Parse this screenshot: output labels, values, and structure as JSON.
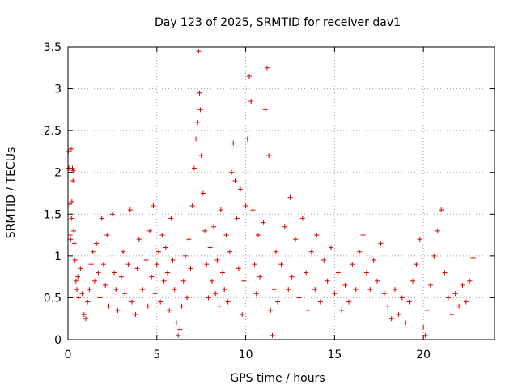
{
  "chart_data": {
    "type": "scatter",
    "title": "Day 123 of 2025, SRMTID for receiver dav1",
    "xlabel": "GPS time / hours",
    "ylabel": "SRMTID / TECUs",
    "xlim": [
      0,
      24
    ],
    "ylim": [
      0,
      3.5
    ],
    "x_ticks": [
      "0",
      "5",
      "10",
      "15",
      "20"
    ],
    "y_ticks": [
      "0",
      "0.5",
      "1",
      "1.5",
      "2",
      "2.5",
      "3",
      "3.5"
    ],
    "grid": true,
    "marker": "plus",
    "color": "#e00000",
    "series": [
      {
        "name": "SRMTID",
        "points": [
          [
            0.02,
            2.25
          ],
          [
            0.05,
            2.05
          ],
          [
            0.1,
            1.62
          ],
          [
            0.12,
            1.25
          ],
          [
            0.15,
            1.2
          ],
          [
            0.18,
            2.28
          ],
          [
            0.2,
            1.45
          ],
          [
            0.22,
            1.65
          ],
          [
            0.25,
            2.05
          ],
          [
            0.28,
            1.9
          ],
          [
            0.3,
            2.02
          ],
          [
            0.32,
            1.3
          ],
          [
            0.35,
            1.15
          ],
          [
            0.4,
            0.95
          ],
          [
            0.45,
            0.7
          ],
          [
            0.5,
            0.6
          ],
          [
            0.55,
            0.75
          ],
          [
            0.6,
            0.5
          ],
          [
            0.7,
            0.85
          ],
          [
            0.8,
            0.55
          ],
          [
            0.9,
            0.3
          ],
          [
            1.0,
            0.25
          ],
          [
            1.1,
            0.45
          ],
          [
            1.2,
            0.6
          ],
          [
            1.3,
            0.9
          ],
          [
            1.4,
            1.05
          ],
          [
            1.5,
            0.7
          ],
          [
            1.6,
            1.15
          ],
          [
            1.7,
            0.8
          ],
          [
            1.8,
            0.5
          ],
          [
            1.9,
            1.45
          ],
          [
            2.0,
            0.9
          ],
          [
            2.1,
            0.65
          ],
          [
            2.2,
            1.25
          ],
          [
            2.3,
            0.4
          ],
          [
            2.5,
            1.5
          ],
          [
            2.6,
            0.8
          ],
          [
            2.7,
            0.6
          ],
          [
            2.8,
            0.35
          ],
          [
            3.0,
            0.75
          ],
          [
            3.1,
            1.05
          ],
          [
            3.2,
            0.55
          ],
          [
            3.4,
            0.9
          ],
          [
            3.5,
            1.55
          ],
          [
            3.6,
            0.45
          ],
          [
            3.8,
            0.3
          ],
          [
            3.9,
            0.85
          ],
          [
            4.0,
            1.2
          ],
          [
            4.2,
            0.6
          ],
          [
            4.4,
            0.95
          ],
          [
            4.5,
            0.4
          ],
          [
            4.6,
            1.3
          ],
          [
            4.7,
            0.75
          ],
          [
            4.8,
            1.6
          ],
          [
            4.9,
            0.55
          ],
          [
            5.0,
            0.9
          ],
          [
            5.1,
            1.05
          ],
          [
            5.2,
            0.45
          ],
          [
            5.3,
            1.25
          ],
          [
            5.4,
            0.7
          ],
          [
            5.5,
            1.1
          ],
          [
            5.6,
            0.8
          ],
          [
            5.7,
            0.35
          ],
          [
            5.8,
            1.45
          ],
          [
            5.9,
            0.95
          ],
          [
            6.0,
            0.6
          ],
          [
            6.1,
            0.2
          ],
          [
            6.2,
            0.05
          ],
          [
            6.3,
            0.12
          ],
          [
            6.4,
            0.4
          ],
          [
            6.5,
            0.7
          ],
          [
            6.6,
            1.0
          ],
          [
            6.7,
            0.5
          ],
          [
            6.8,
            1.2
          ],
          [
            6.9,
            0.85
          ],
          [
            7.0,
            1.6
          ],
          [
            7.1,
            2.05
          ],
          [
            7.2,
            2.4
          ],
          [
            7.3,
            2.6
          ],
          [
            7.35,
            3.45
          ],
          [
            7.4,
            2.95
          ],
          [
            7.45,
            2.75
          ],
          [
            7.5,
            2.2
          ],
          [
            7.6,
            1.75
          ],
          [
            7.7,
            1.3
          ],
          [
            7.8,
            0.9
          ],
          [
            7.9,
            0.5
          ],
          [
            8.0,
            1.1
          ],
          [
            8.1,
            0.7
          ],
          [
            8.2,
            1.35
          ],
          [
            8.3,
            0.55
          ],
          [
            8.4,
            0.95
          ],
          [
            8.5,
            0.4
          ],
          [
            8.6,
            1.55
          ],
          [
            8.7,
            0.8
          ],
          [
            8.8,
            0.6
          ],
          [
            8.9,
            1.25
          ],
          [
            9.0,
            0.45
          ],
          [
            9.1,
            1.05
          ],
          [
            9.2,
            2.0
          ],
          [
            9.3,
            2.35
          ],
          [
            9.4,
            1.9
          ],
          [
            9.5,
            1.45
          ],
          [
            9.6,
            0.85
          ],
          [
            9.7,
            1.8
          ],
          [
            9.8,
            0.3
          ],
          [
            9.9,
            0.7
          ],
          [
            10.0,
            1.6
          ],
          [
            10.1,
            2.4
          ],
          [
            10.2,
            3.15
          ],
          [
            10.3,
            2.85
          ],
          [
            10.4,
            1.55
          ],
          [
            10.5,
            0.9
          ],
          [
            10.6,
            0.55
          ],
          [
            10.7,
            1.25
          ],
          [
            10.8,
            0.75
          ],
          [
            11.0,
            1.4
          ],
          [
            11.1,
            2.75
          ],
          [
            11.2,
            3.25
          ],
          [
            11.3,
            2.2
          ],
          [
            11.4,
            0.35
          ],
          [
            11.5,
            0.05
          ],
          [
            11.6,
            0.6
          ],
          [
            11.7,
            1.05
          ],
          [
            11.8,
            0.45
          ],
          [
            12.0,
            0.9
          ],
          [
            12.2,
            1.35
          ],
          [
            12.4,
            0.6
          ],
          [
            12.5,
            1.7
          ],
          [
            12.6,
            0.75
          ],
          [
            12.8,
            1.2
          ],
          [
            13.0,
            0.5
          ],
          [
            13.2,
            1.45
          ],
          [
            13.4,
            0.8
          ],
          [
            13.5,
            0.35
          ],
          [
            13.7,
            1.05
          ],
          [
            13.9,
            0.6
          ],
          [
            14.0,
            1.25
          ],
          [
            14.2,
            0.45
          ],
          [
            14.4,
            0.95
          ],
          [
            14.6,
            0.7
          ],
          [
            14.8,
            1.1
          ],
          [
            15.0,
            0.55
          ],
          [
            15.2,
            0.8
          ],
          [
            15.4,
            0.35
          ],
          [
            15.6,
            0.65
          ],
          [
            15.8,
            0.45
          ],
          [
            16.0,
            0.9
          ],
          [
            16.2,
            0.6
          ],
          [
            16.4,
            1.05
          ],
          [
            16.6,
            1.25
          ],
          [
            16.8,
            0.8
          ],
          [
            17.0,
            0.6
          ],
          [
            17.2,
            0.95
          ],
          [
            17.4,
            0.7
          ],
          [
            17.6,
            1.15
          ],
          [
            17.8,
            0.55
          ],
          [
            18.0,
            0.4
          ],
          [
            18.2,
            0.25
          ],
          [
            18.4,
            0.6
          ],
          [
            18.6,
            0.3
          ],
          [
            18.8,
            0.5
          ],
          [
            19.0,
            0.2
          ],
          [
            19.2,
            0.45
          ],
          [
            19.4,
            0.7
          ],
          [
            19.6,
            0.9
          ],
          [
            19.8,
            1.2
          ],
          [
            20.0,
            0.15
          ],
          [
            20.1,
            0.05
          ],
          [
            20.2,
            0.35
          ],
          [
            20.4,
            0.65
          ],
          [
            20.6,
            1.0
          ],
          [
            20.8,
            1.3
          ],
          [
            21.0,
            1.55
          ],
          [
            21.2,
            0.8
          ],
          [
            21.4,
            0.5
          ],
          [
            21.6,
            0.3
          ],
          [
            21.8,
            0.55
          ],
          [
            22.0,
            0.4
          ],
          [
            22.2,
            0.65
          ],
          [
            22.4,
            0.45
          ],
          [
            22.6,
            0.7
          ],
          [
            22.8,
            0.98
          ]
        ]
      }
    ]
  }
}
